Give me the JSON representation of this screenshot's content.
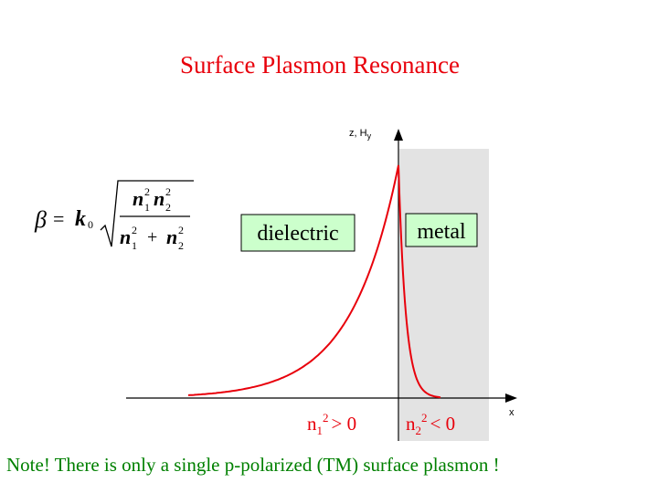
{
  "title": "Surface Plasmon Resonance",
  "note": "Note! There is only a single p-polarized (TM) surface plasmon !",
  "formula": {
    "lhs": "β",
    "equals": "=",
    "k": "k",
    "k_sub": "0",
    "num_n1": "n",
    "num_n1_sub": "1",
    "num_n1_sup": "2",
    "num_n2": "n",
    "num_n2_sub": "2",
    "num_n2_sup": "2",
    "den_n1": "n",
    "den_n1_sub": "1",
    "den_n1_sup": "2",
    "den_plus": "+",
    "den_n2": "n",
    "den_n2_sub": "2",
    "den_n2_sup": "2"
  },
  "plot": {
    "y_axis_label_prefix": "z, H",
    "y_axis_label_sub": "y",
    "x_axis_label": "x",
    "dielectric_label": "dielectric",
    "metal_label": "metal",
    "n1": {
      "base": "n",
      "sub": "1",
      "sup": "2",
      "rel": "> 0"
    },
    "n2": {
      "base": "n",
      "sub": "2",
      "sup": "2",
      "rel": "< 0"
    }
  },
  "colors": {
    "title": "#e8000b",
    "note": "#008000",
    "curve": "#e8000b",
    "label_box_fill": "#ccffcc",
    "metal_region": "#e3e3e3",
    "axes": "#000000"
  }
}
